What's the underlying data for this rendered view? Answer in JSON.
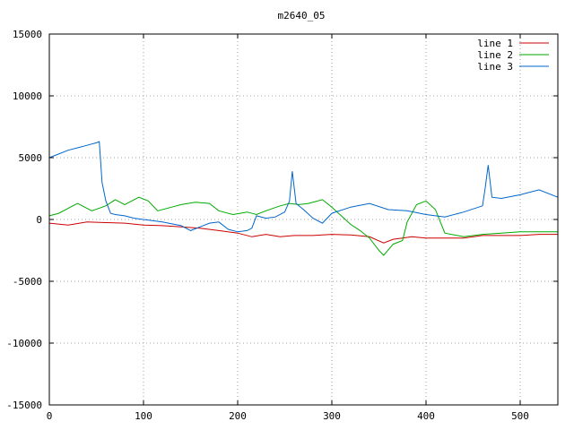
{
  "chart_data": {
    "type": "line",
    "title": "m2640_05",
    "xlabel": "",
    "ylabel": "",
    "xlim": [
      0,
      540
    ],
    "ylim": [
      -15000,
      15000
    ],
    "xticks": [
      0,
      100,
      200,
      300,
      400,
      500
    ],
    "yticks": [
      -15000,
      -10000,
      -5000,
      0,
      5000,
      10000,
      15000
    ],
    "xtick_labels": [
      "0",
      "100",
      "200",
      "300",
      "400",
      "500"
    ],
    "ytick_labels": [
      "-15000",
      "-10000",
      "-5000",
      "0",
      "5000",
      "10000",
      "15000"
    ],
    "grid": true,
    "legend_position": "top-right",
    "series": [
      {
        "name": "line 1",
        "color": "#cc0000",
        "x": [
          0,
          20,
          40,
          60,
          80,
          100,
          120,
          140,
          160,
          180,
          200,
          215,
          230,
          245,
          260,
          280,
          300,
          320,
          340,
          355,
          365,
          375,
          385,
          400,
          420,
          440,
          460,
          480,
          500,
          520,
          540
        ],
        "y": [
          -300,
          -450,
          -200,
          -250,
          -300,
          -450,
          -500,
          -600,
          -700,
          -900,
          -1100,
          -1400,
          -1200,
          -1400,
          -1300,
          -1300,
          -1200,
          -1250,
          -1400,
          -1900,
          -1600,
          -1500,
          -1400,
          -1500,
          -1500,
          -1500,
          -1300,
          -1300,
          -1300,
          -1200,
          -1200
        ]
      },
      {
        "name": "line 2",
        "color": "#00aa00",
        "x": [
          0,
          10,
          20,
          30,
          45,
          60,
          70,
          80,
          95,
          105,
          115,
          130,
          140,
          155,
          170,
          180,
          195,
          210,
          220,
          230,
          245,
          255,
          265,
          275,
          290,
          300,
          310,
          320,
          330,
          340,
          350,
          355,
          365,
          375,
          380,
          390,
          400,
          410,
          420,
          440,
          460,
          480,
          500,
          520,
          540
        ],
        "y": [
          300,
          500,
          900,
          1300,
          700,
          1100,
          1600,
          1200,
          1800,
          1500,
          700,
          1000,
          1200,
          1400,
          1300,
          700,
          400,
          600,
          400,
          700,
          1100,
          1300,
          1200,
          1300,
          1600,
          1000,
          300,
          -400,
          -900,
          -1500,
          -2500,
          -2900,
          -2000,
          -1700,
          -200,
          1200,
          1500,
          800,
          -1100,
          -1400,
          -1200,
          -1100,
          -1000,
          -1000,
          -1000
        ]
      },
      {
        "name": "line 3",
        "color": "#0066cc",
        "x": [
          0,
          10,
          20,
          30,
          40,
          50,
          53,
          56,
          60,
          65,
          70,
          80,
          90,
          100,
          120,
          140,
          150,
          160,
          170,
          180,
          190,
          200,
          210,
          215,
          220,
          230,
          240,
          250,
          255,
          258,
          262,
          270,
          280,
          290,
          300,
          320,
          340,
          360,
          380,
          400,
          420,
          440,
          460,
          463,
          466,
          470,
          480,
          500,
          520,
          540
        ],
        "y": [
          5000,
          5300,
          5600,
          5800,
          6000,
          6200,
          6300,
          3000,
          1500,
          500,
          400,
          300,
          100,
          0,
          -200,
          -500,
          -900,
          -600,
          -300,
          -200,
          -800,
          -1000,
          -900,
          -700,
          300,
          100,
          200,
          600,
          1500,
          3900,
          1300,
          800,
          100,
          -300,
          500,
          1000,
          1300,
          800,
          700,
          400,
          200,
          600,
          1100,
          2600,
          4400,
          1800,
          1700,
          2000,
          2400,
          1800
        ]
      }
    ]
  }
}
